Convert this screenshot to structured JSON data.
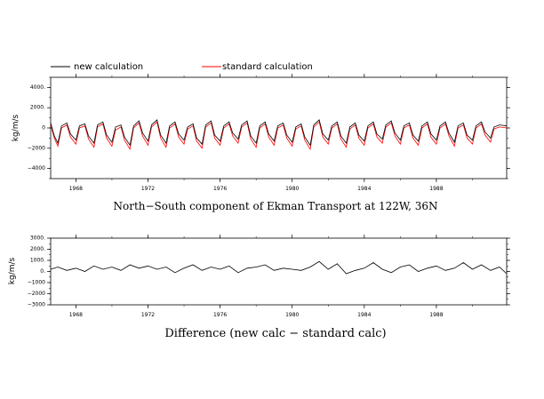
{
  "legend": {
    "new_label": "new calculation",
    "standard_label": "standard calculation",
    "new_color": "#000000",
    "standard_color": "#ff0000"
  },
  "chart_data": [
    {
      "type": "line",
      "title": "North−South component of Ekman Transport at 122W, 36N",
      "ylabel": "kg/m/s",
      "xlim": [
        1966.6,
        1991.9
      ],
      "ylim": [
        -5000,
        5000
      ],
      "yticks": [
        -4000,
        -2000,
        0,
        2000,
        4000
      ],
      "ytick_labels": [
        "−4000",
        "−2000",
        "0",
        "2000.",
        "4000."
      ],
      "xticks": [
        1968,
        1972,
        1976,
        1980,
        1984,
        1988
      ],
      "xtick_labels": [
        "1968",
        "1972",
        "1976",
        "1980",
        "1984",
        "1988"
      ],
      "series_labels": [
        "new calculation",
        "standard calculation"
      ],
      "series_colors": [
        "#000000",
        "#ff0000"
      ],
      "series": [
        {
          "x": [
            1966.6,
            1966.8,
            1967.0,
            1967.2,
            1967.5,
            1967.7,
            1968.0,
            1968.2,
            1968.5,
            1968.7,
            1969.0,
            1969.2,
            1969.5,
            1969.7,
            1970.0,
            1970.2,
            1970.5,
            1970.7,
            1971.0,
            1971.2,
            1971.5,
            1971.7,
            1972.0,
            1972.2,
            1972.5,
            1972.7,
            1973.0,
            1973.2,
            1973.5,
            1973.7,
            1974.0,
            1974.2,
            1974.5,
            1974.7,
            1975.0,
            1975.2,
            1975.5,
            1975.7,
            1976.0,
            1976.2,
            1976.5,
            1976.7,
            1977.0,
            1977.2,
            1977.5,
            1977.7,
            1978.0,
            1978.2,
            1978.5,
            1978.7,
            1979.0,
            1979.2,
            1979.5,
            1979.7,
            1980.0,
            1980.2,
            1980.5,
            1980.7,
            1981.0,
            1981.2,
            1981.5,
            1981.7,
            1982.0,
            1982.2,
            1982.5,
            1982.7,
            1983.0,
            1983.2,
            1983.5,
            1983.7,
            1984.0,
            1984.2,
            1984.5,
            1984.7,
            1985.0,
            1985.2,
            1985.5,
            1985.7,
            1986.0,
            1986.2,
            1986.5,
            1986.7,
            1987.0,
            1987.2,
            1987.5,
            1987.7,
            1988.0,
            1988.2,
            1988.5,
            1988.7,
            1989.0,
            1989.2,
            1989.5,
            1989.7,
            1990.0,
            1990.2,
            1990.5,
            1990.7,
            1991.0,
            1991.2,
            1991.5,
            1991.9
          ],
          "y": [
            500,
            -800,
            -1500,
            200,
            500,
            -600,
            -1200,
            200,
            400,
            -800,
            -1500,
            300,
            600,
            -700,
            -1400,
            100,
            300,
            -900,
            -1700,
            200,
            700,
            -500,
            -1300,
            300,
            800,
            -700,
            -1500,
            200,
            600,
            -600,
            -1200,
            100,
            400,
            -1000,
            -1600,
            300,
            700,
            -700,
            -1300,
            200,
            600,
            -500,
            -1100,
            300,
            700,
            -800,
            -1500,
            200,
            600,
            -600,
            -1300,
            200,
            500,
            -700,
            -1400,
            100,
            400,
            -900,
            -1700,
            300,
            800,
            -600,
            -1200,
            200,
            600,
            -800,
            -1500,
            100,
            500,
            -700,
            -1300,
            200,
            600,
            -600,
            -1100,
            300,
            700,
            -500,
            -1200,
            200,
            500,
            -700,
            -1300,
            200,
            600,
            -600,
            -1200,
            200,
            600,
            -500,
            -1400,
            200,
            500,
            -700,
            -1200,
            200,
            600,
            -400,
            -1000,
            100,
            300,
            200
          ]
        },
        {
          "x": [
            1966.6,
            1966.8,
            1967.0,
            1967.2,
            1967.5,
            1967.7,
            1968.0,
            1968.2,
            1968.5,
            1968.7,
            1969.0,
            1969.2,
            1969.5,
            1969.7,
            1970.0,
            1970.2,
            1970.5,
            1970.7,
            1971.0,
            1971.2,
            1971.5,
            1971.7,
            1972.0,
            1972.2,
            1972.5,
            1972.7,
            1973.0,
            1973.2,
            1973.5,
            1973.7,
            1974.0,
            1974.2,
            1974.5,
            1974.7,
            1975.0,
            1975.2,
            1975.5,
            1975.7,
            1976.0,
            1976.2,
            1976.5,
            1976.7,
            1977.0,
            1977.2,
            1977.5,
            1977.7,
            1978.0,
            1978.2,
            1978.5,
            1978.7,
            1979.0,
            1979.2,
            1979.5,
            1979.7,
            1980.0,
            1980.2,
            1980.5,
            1980.7,
            1981.0,
            1981.2,
            1981.5,
            1981.7,
            1982.0,
            1982.2,
            1982.5,
            1982.7,
            1983.0,
            1983.2,
            1983.5,
            1983.7,
            1984.0,
            1984.2,
            1984.5,
            1984.7,
            1985.0,
            1985.2,
            1985.5,
            1985.7,
            1986.0,
            1986.2,
            1986.5,
            1986.7,
            1987.0,
            1987.2,
            1987.5,
            1987.7,
            1988.0,
            1988.2,
            1988.5,
            1988.7,
            1989.0,
            1989.2,
            1989.5,
            1989.7,
            1990.0,
            1990.2,
            1990.5,
            1990.7,
            1991.0,
            1991.2,
            1991.5,
            1991.9
          ],
          "y": [
            300,
            -1000,
            -1800,
            0,
            300,
            -900,
            -1600,
            0,
            200,
            -1100,
            -1900,
            100,
            400,
            -1000,
            -1800,
            -200,
            100,
            -1200,
            -2100,
            0,
            500,
            -800,
            -1700,
            100,
            600,
            -1000,
            -1900,
            0,
            400,
            -900,
            -1600,
            -100,
            200,
            -1300,
            -2000,
            100,
            500,
            -1000,
            -1700,
            0,
            400,
            -800,
            -1500,
            100,
            500,
            -1100,
            -1900,
            0,
            400,
            -900,
            -1700,
            0,
            300,
            -1000,
            -1800,
            -100,
            200,
            -1200,
            -2100,
            100,
            600,
            -900,
            -1600,
            0,
            400,
            -1100,
            -1900,
            -100,
            300,
            -1000,
            -1700,
            0,
            400,
            -900,
            -1500,
            100,
            500,
            -800,
            -1600,
            0,
            300,
            -1000,
            -1700,
            0,
            400,
            -900,
            -1600,
            0,
            400,
            -800,
            -1800,
            0,
            300,
            -1000,
            -1600,
            0,
            400,
            -700,
            -1400,
            -100,
            100,
            0
          ]
        }
      ]
    },
    {
      "type": "line",
      "title": "Difference (new calc − standard calc)",
      "ylabel": "kg/m/s",
      "xlim": [
        1966.6,
        1991.9
      ],
      "ylim": [
        -3000,
        3000
      ],
      "yticks": [
        -3000,
        -2000,
        -1000,
        0,
        1000,
        2000,
        3000
      ],
      "ytick_labels": [
        "−3000",
        "−2000",
        "−1000",
        "0.",
        "1000.",
        "2000.",
        "3000."
      ],
      "xticks": [
        1968,
        1972,
        1976,
        1980,
        1984,
        1988
      ],
      "xtick_labels": [
        "1968",
        "1972",
        "1976",
        "1980",
        "1984",
        "1988"
      ],
      "series": [
        {
          "x": [
            1966.6,
            1967.0,
            1967.5,
            1968.0,
            1968.5,
            1969.0,
            1969.5,
            1970.0,
            1970.5,
            1971.0,
            1971.5,
            1972.0,
            1972.5,
            1973.0,
            1973.5,
            1974.0,
            1974.5,
            1975.0,
            1975.5,
            1976.0,
            1976.5,
            1977.0,
            1977.5,
            1978.0,
            1978.5,
            1979.0,
            1979.5,
            1980.0,
            1980.5,
            1981.0,
            1981.5,
            1982.0,
            1982.5,
            1983.0,
            1983.5,
            1984.0,
            1984.5,
            1985.0,
            1985.5,
            1986.0,
            1986.5,
            1987.0,
            1987.5,
            1988.0,
            1988.5,
            1989.0,
            1989.5,
            1990.0,
            1990.5,
            1991.0,
            1991.5,
            1991.9
          ],
          "y": [
            200,
            400,
            100,
            300,
            0,
            500,
            200,
            400,
            100,
            600,
            300,
            500,
            200,
            400,
            -100,
            300,
            600,
            100,
            400,
            200,
            500,
            -100,
            300,
            400,
            600,
            100,
            300,
            200,
            100,
            400,
            900,
            200,
            700,
            -200,
            100,
            300,
            800,
            200,
            -100,
            400,
            600,
            0,
            300,
            500,
            100,
            300,
            800,
            200,
            600,
            100,
            400,
            -200
          ]
        }
      ]
    }
  ]
}
